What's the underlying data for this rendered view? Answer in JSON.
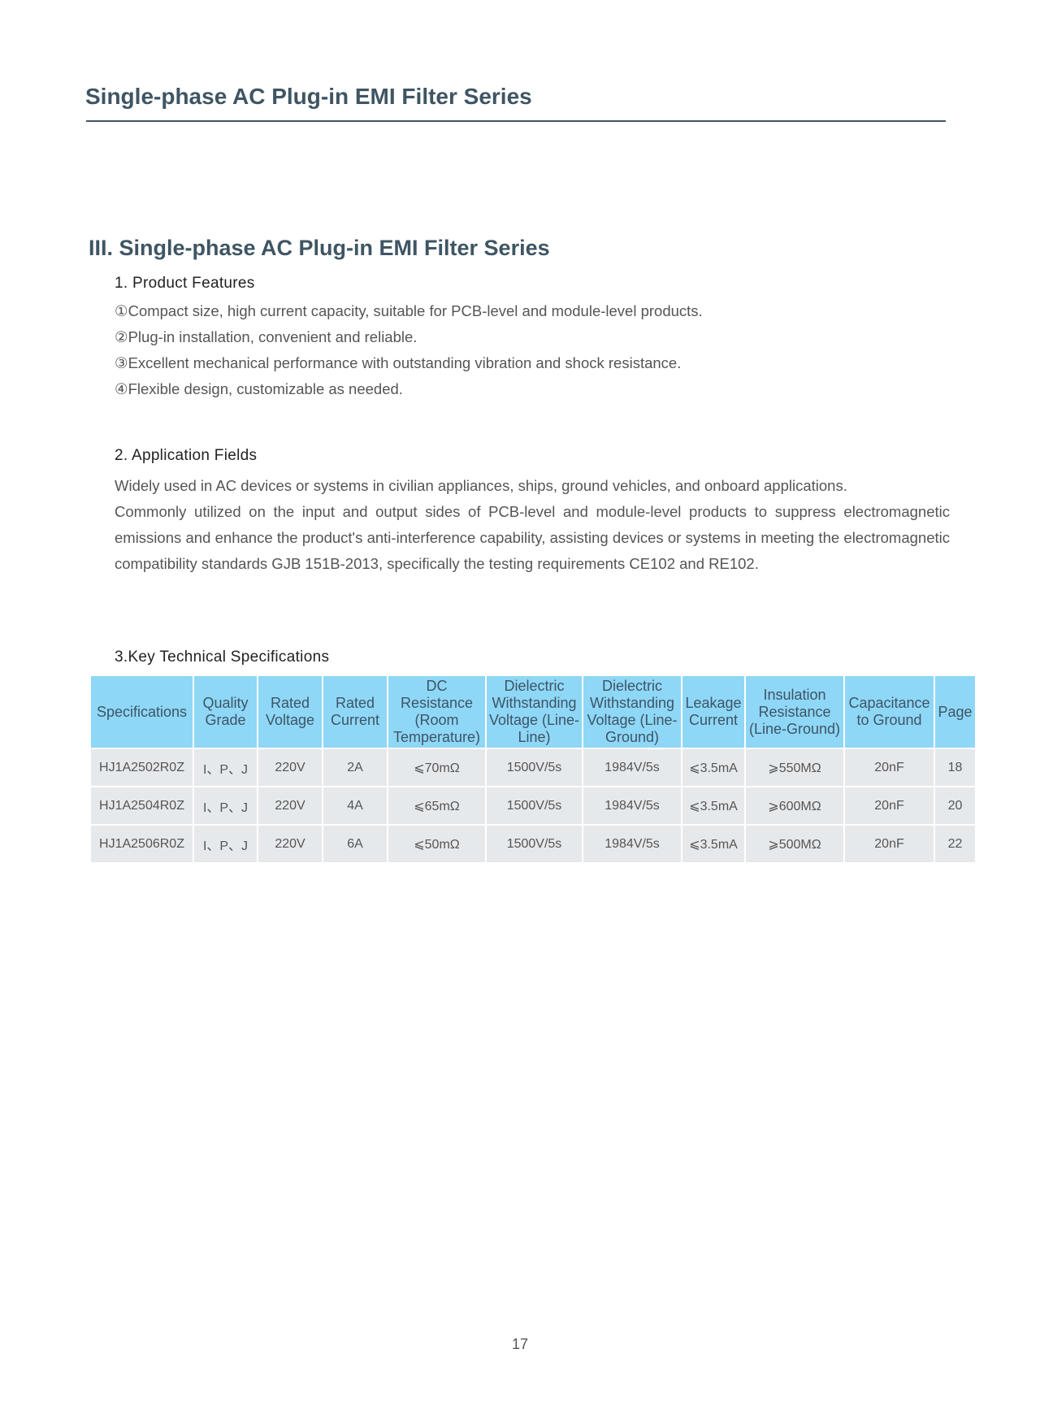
{
  "header": {
    "title": "Single-phase AC Plug-in EMI Filter Series"
  },
  "section": {
    "title": "III. Single-phase AC Plug-in EMI Filter Series"
  },
  "features": {
    "heading": "1. Product Features",
    "items": [
      "①Compact size, high current capacity, suitable for PCB-level and module-level products.",
      "②Plug-in installation, convenient and reliable.",
      "③Excellent mechanical performance with outstanding vibration and shock resistance.",
      "④Flexible design, customizable as needed."
    ]
  },
  "applications": {
    "heading": "2. Application Fields",
    "paragraphs": [
      "Widely used in AC devices or systems in civilian appliances, ships, ground vehicles, and onboard applications.",
      "Commonly utilized on the input and output sides of PCB-level and module-level products to suppress electromagnetic emissions and enhance the product's anti-interference capability, assisting devices or systems in meeting the electromagnetic compatibility standards GJB 151B-2013, specifically the testing requirements CE102 and RE102."
    ]
  },
  "specs": {
    "heading": "3.Key Technical Specifications",
    "columns": [
      "Specifications",
      "Quality Grade",
      "Rated Voltage",
      "Rated Current",
      "DC Resistance (Room Temperature)",
      "Dielectric Withstanding Voltage (Line-Line)",
      "Dielectric Withstanding Voltage (Line-Ground)",
      "Leakage Current",
      "Insulation Resistance (Line-Ground)",
      "Capacitance to Ground",
      "Page"
    ],
    "rows": [
      [
        "HJ1A2502R0Z",
        "I、P、J",
        "220V",
        "2A",
        "⩽70mΩ",
        "1500V/5s",
        "1984V/5s",
        "⩽3.5mA",
        "⩾550MΩ",
        "20nF",
        "18"
      ],
      [
        "HJ1A2504R0Z",
        "I、P、J",
        "220V",
        "4A",
        "⩽65mΩ",
        "1500V/5s",
        "1984V/5s",
        "⩽3.5mA",
        "⩾600MΩ",
        "20nF",
        "20"
      ],
      [
        "HJ1A2506R0Z",
        "I、P、J",
        "220V",
        "6A",
        "⩽50mΩ",
        "1500V/5s",
        "1984V/5s",
        "⩽3.5mA",
        "⩾500MΩ",
        "20nF",
        "22"
      ]
    ]
  },
  "footer": {
    "page_number": "17"
  },
  "colors": {
    "title": "#3f5563",
    "table_header_bg": "#8fd7f6",
    "table_row_bg": "#e6e9ec"
  }
}
